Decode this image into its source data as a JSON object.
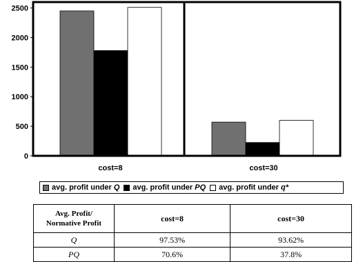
{
  "chart_data": {
    "type": "bar",
    "categories": [
      "cost=8",
      "cost=30"
    ],
    "series": [
      {
        "name": "avg. profit under Q",
        "values": [
          2450,
          570
        ],
        "color": "#707070"
      },
      {
        "name": "avg. profit under PQ",
        "values": [
          1780,
          225
        ],
        "color": "#000000"
      },
      {
        "name": "avg. profit under q*",
        "values": [
          2510,
          600
        ],
        "color": "#ffffff"
      }
    ],
    "yticks": [
      "0",
      "500",
      "1000",
      "1500",
      "2000",
      "2500"
    ],
    "ylim": [
      0,
      2600
    ],
    "grid": false,
    "legend_position": "bottom"
  },
  "legend": [
    {
      "prefix": "avg. profit under ",
      "sym": "Q",
      "color": "#707070"
    },
    {
      "prefix": "avg. profit under ",
      "sym": "PQ",
      "color": "#000000"
    },
    {
      "prefix": "avg. profit under ",
      "sym": "q*",
      "color": "#ffffff"
    }
  ],
  "table": {
    "header": [
      "Avg. Profit/ Normative Profit",
      "cost=8",
      "cost=30"
    ],
    "header_line1": "Avg. Profit/",
    "header_line2": "Normative Profit",
    "rows": [
      {
        "name": "Q",
        "values": [
          "97.53%",
          "93.62%"
        ]
      },
      {
        "name": "PQ",
        "values": [
          "70.6%",
          "37.8%"
        ]
      }
    ]
  }
}
